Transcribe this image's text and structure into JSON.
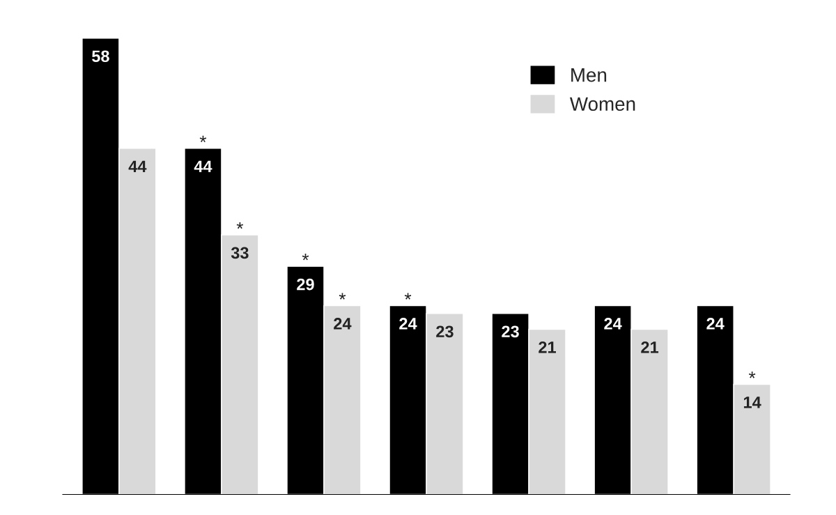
{
  "chart_data": {
    "type": "bar",
    "categories": [
      null,
      null,
      null,
      null,
      null,
      null,
      null
    ],
    "series": [
      {
        "name": "Men",
        "color": "#000000",
        "values": [
          58,
          44,
          29,
          24,
          23,
          24,
          24
        ],
        "value_labels": [
          "58",
          "*\n44",
          "*\n29",
          "*\n24",
          "23",
          "24",
          "24"
        ]
      },
      {
        "name": "Women",
        "color": "#d9d9d9",
        "values": [
          44,
          33,
          24,
          23,
          21,
          21,
          14
        ],
        "value_labels": [
          "44",
          "*\n33",
          "*\n24",
          "23",
          "21",
          "21",
          "*\n14"
        ]
      }
    ],
    "legend": "top right",
    "grid": false
  }
}
